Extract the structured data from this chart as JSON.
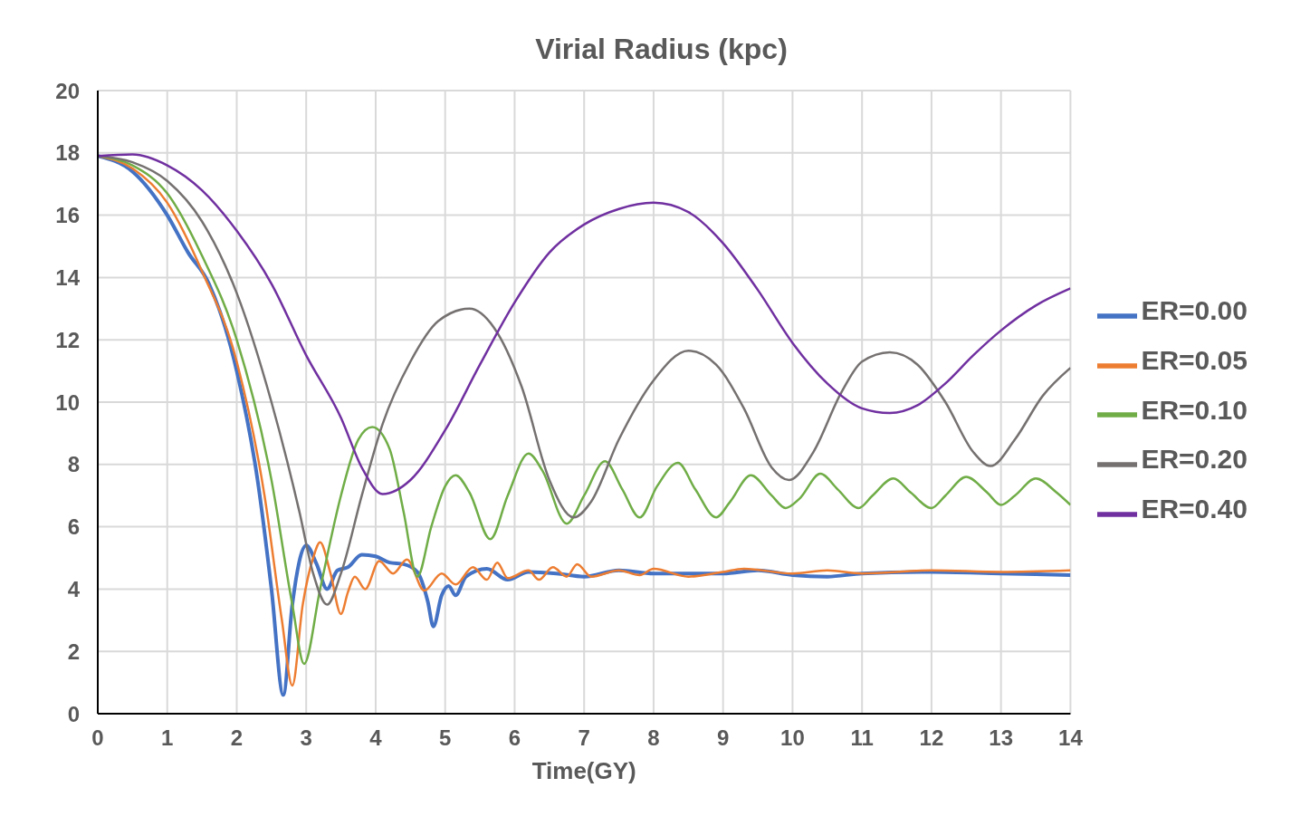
{
  "chart_data": {
    "type": "line",
    "title": "Virial Radius (kpc)",
    "xlabel": "Time(GY)",
    "xlim": [
      0,
      14
    ],
    "xticks": [
      0,
      1,
      2,
      3,
      4,
      5,
      6,
      7,
      8,
      9,
      10,
      11,
      12,
      13,
      14
    ],
    "ylim": [
      0,
      20
    ],
    "yticks": [
      0,
      2,
      4,
      6,
      8,
      10,
      12,
      14,
      16,
      18,
      20
    ],
    "grid": true,
    "legend": "right",
    "marker": "none",
    "line_style": "solid",
    "series": [
      {
        "name": "ER=0.00",
        "color": "#4472c4",
        "x": [
          0,
          0.5,
          1,
          1.3,
          1.6,
          2,
          2.3,
          2.5,
          2.67,
          2.8,
          3.0,
          3.15,
          3.3,
          3.45,
          3.6,
          3.8,
          4.0,
          4.2,
          4.4,
          4.6,
          4.75,
          4.83,
          4.95,
          5.05,
          5.15,
          5.3,
          5.6,
          5.9,
          6.2,
          6.6,
          7.0,
          7.5,
          8,
          9,
          9.5,
          10,
          10.5,
          11,
          12,
          13,
          14
        ],
        "values": [
          17.9,
          17.4,
          16,
          14.8,
          13.8,
          11,
          7.5,
          4,
          0.6,
          3.5,
          5.4,
          4.8,
          4,
          4.6,
          4.7,
          5.1,
          5.05,
          4.85,
          4.8,
          4.55,
          3.6,
          2.8,
          3.8,
          4.1,
          3.8,
          4.4,
          4.65,
          4.3,
          4.55,
          4.5,
          4.4,
          4.6,
          4.5,
          4.5,
          4.6,
          4.45,
          4.4,
          4.5,
          4.55,
          4.5,
          4.45
        ]
      },
      {
        "name": "ER=0.05",
        "color": "#ed7d31",
        "x": [
          0,
          0.5,
          1,
          1.5,
          2,
          2.4,
          2.65,
          2.8,
          2.95,
          3.1,
          3.2,
          3.35,
          3.5,
          3.6,
          3.7,
          3.85,
          4.05,
          4.25,
          4.45,
          4.7,
          4.95,
          5.15,
          5.4,
          5.6,
          5.75,
          5.9,
          6.2,
          6.35,
          6.55,
          6.75,
          6.9,
          7.1,
          7.5,
          7.8,
          8,
          8.5,
          9,
          9.3,
          10,
          10.5,
          11,
          12,
          13,
          14
        ],
        "values": [
          17.9,
          17.5,
          16.4,
          14.2,
          11.3,
          7,
          3,
          0.9,
          3.5,
          5.0,
          5.5,
          4.5,
          3.2,
          3.9,
          4.4,
          4.0,
          4.9,
          4.5,
          4.95,
          3.95,
          4.5,
          4.15,
          4.7,
          4.3,
          4.85,
          4.35,
          4.6,
          4.3,
          4.7,
          4.4,
          4.8,
          4.4,
          4.6,
          4.45,
          4.65,
          4.4,
          4.55,
          4.65,
          4.5,
          4.6,
          4.5,
          4.6,
          4.55,
          4.6
        ]
      },
      {
        "name": "ER=0.10",
        "color": "#70ad47",
        "x": [
          0,
          0.5,
          1,
          1.5,
          2,
          2.5,
          2.8,
          2.97,
          3.2,
          3.5,
          3.75,
          3.95,
          4.2,
          4.4,
          4.6,
          4.8,
          5.0,
          5.15,
          5.35,
          5.65,
          5.9,
          6.2,
          6.4,
          6.75,
          7,
          7.3,
          7.55,
          7.8,
          8.05,
          8.35,
          8.6,
          8.9,
          9.1,
          9.4,
          9.7,
          9.9,
          10.1,
          10.4,
          10.65,
          10.95,
          11.15,
          11.45,
          11.7,
          12,
          12.2,
          12.5,
          12.8,
          13,
          13.2,
          13.5,
          13.8,
          14
        ],
        "values": [
          17.9,
          17.6,
          16.7,
          14.7,
          12,
          7.5,
          3.5,
          1.6,
          4,
          7,
          8.8,
          9.2,
          8.5,
          6.5,
          4.4,
          6,
          7.3,
          7.65,
          7.1,
          5.6,
          7,
          8.35,
          7.8,
          6.1,
          7,
          8.1,
          7.2,
          6.3,
          7.3,
          8.05,
          7.2,
          6.3,
          6.8,
          7.65,
          7.0,
          6.6,
          6.9,
          7.7,
          7.2,
          6.6,
          7,
          7.55,
          7.1,
          6.6,
          7.0,
          7.6,
          7.1,
          6.7,
          7,
          7.55,
          7.1,
          6.7
        ]
      },
      {
        "name": "ER=0.20",
        "color": "#767171",
        "x": [
          0,
          0.5,
          1,
          1.5,
          2,
          2.5,
          2.9,
          3.1,
          3.3,
          3.5,
          3.8,
          4.1,
          4.5,
          4.9,
          5.35,
          5.7,
          6.1,
          6.5,
          6.85,
          7.1,
          7.5,
          8,
          8.5,
          8.9,
          9.3,
          9.7,
          9.95,
          10.3,
          10.7,
          11.0,
          11.4,
          11.8,
          12.2,
          12.6,
          12.85,
          13.2,
          13.6,
          14
        ],
        "values": [
          17.9,
          17.7,
          17.1,
          15.8,
          13.5,
          10,
          6.5,
          4.5,
          3.5,
          4.5,
          7,
          9.3,
          11.3,
          12.6,
          13,
          12.4,
          10.5,
          7.5,
          6.3,
          6.8,
          8.8,
          10.7,
          11.65,
          11.2,
          9.8,
          7.9,
          7.5,
          8.4,
          10.3,
          11.3,
          11.6,
          11.2,
          10,
          8.4,
          7.95,
          8.8,
          10.2,
          11.1
        ]
      },
      {
        "name": "ER=0.40",
        "color": "#7030a0",
        "x": [
          0,
          0.5,
          1,
          1.5,
          2,
          2.5,
          3,
          3.5,
          3.8,
          4.1,
          4.5,
          5,
          5.5,
          6,
          6.5,
          7,
          7.5,
          8,
          8.5,
          9,
          9.5,
          10,
          10.5,
          11,
          11.4,
          11.8,
          12.2,
          12.6,
          13,
          13.5,
          14
        ],
        "values": [
          17.9,
          17.95,
          17.6,
          16.8,
          15.5,
          13.8,
          11.5,
          9.5,
          7.9,
          7.05,
          7.5,
          9.1,
          11.2,
          13.2,
          14.8,
          15.7,
          16.2,
          16.4,
          16.1,
          15.1,
          13.6,
          11.9,
          10.6,
          9.8,
          9.65,
          9.9,
          10.6,
          11.5,
          12.3,
          13.1,
          13.65
        ]
      }
    ]
  }
}
